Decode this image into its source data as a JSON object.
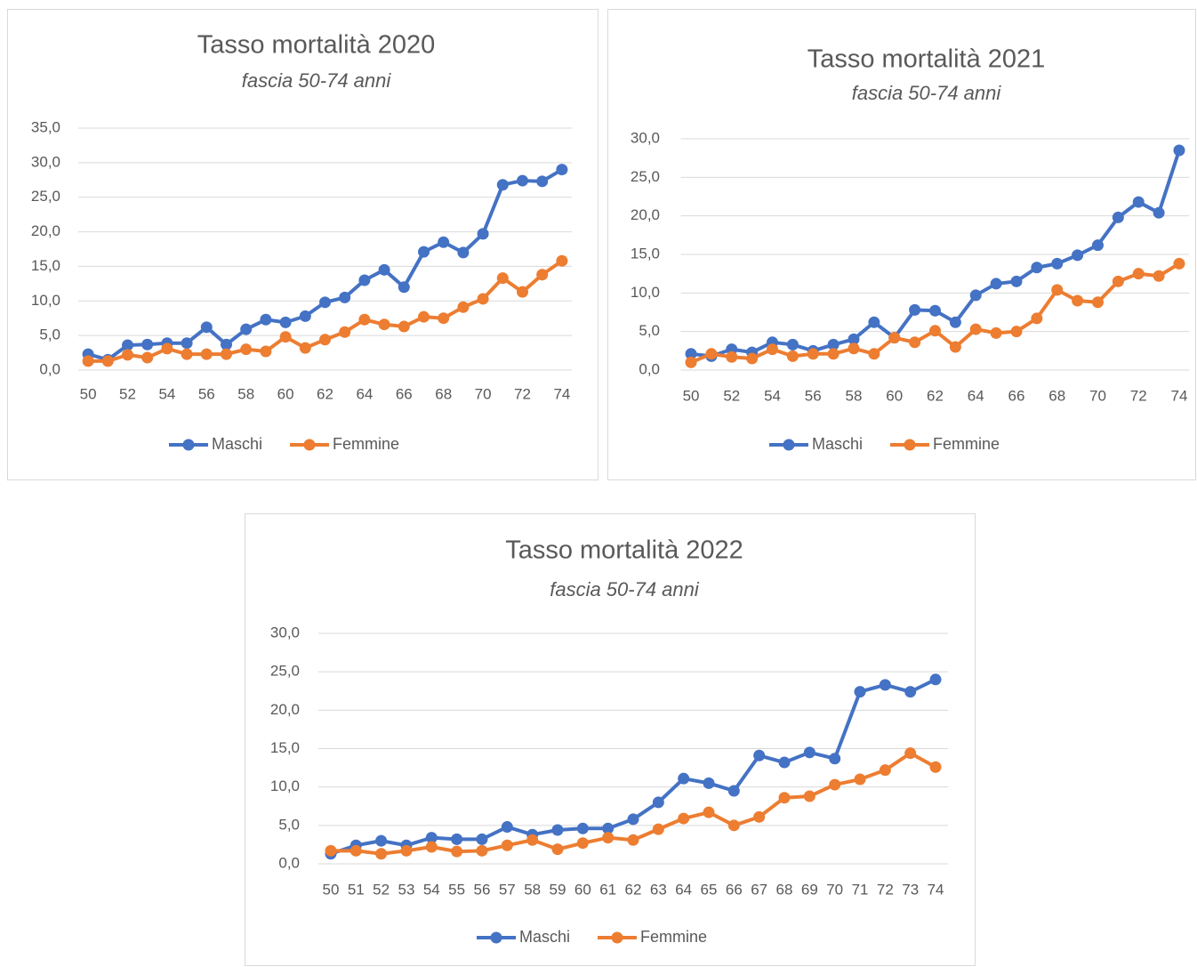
{
  "chart_data": [
    {
      "type": "line",
      "title": "Tasso mortalità 2020",
      "subtitle": "fascia 50-74 anni",
      "categories": [
        "50",
        null,
        "52",
        null,
        "54",
        null,
        "56",
        null,
        "58",
        null,
        "60",
        null,
        "62",
        null,
        "64",
        null,
        "66",
        null,
        "68",
        null,
        "70",
        null,
        "72",
        null,
        "74"
      ],
      "series": [
        {
          "name": "Maschi",
          "color": "#4472c4",
          "values": [
            2.3,
            1.5,
            3.6,
            3.7,
            3.9,
            3.9,
            6.2,
            3.7,
            5.9,
            7.3,
            6.9,
            7.8,
            9.8,
            10.5,
            13.0,
            14.5,
            12.0,
            17.1,
            18.5,
            17.0,
            19.7,
            26.8,
            27.4,
            27.3,
            29.0
          ]
        },
        {
          "name": "Femmine",
          "color": "#ed7d31",
          "values": [
            1.3,
            1.3,
            2.2,
            1.8,
            3.1,
            2.3,
            2.3,
            2.3,
            3.0,
            2.7,
            4.8,
            3.2,
            4.4,
            5.5,
            7.3,
            6.6,
            6.3,
            7.7,
            7.5,
            9.1,
            10.3,
            13.3,
            11.3,
            13.8,
            15.8
          ]
        }
      ],
      "ylim": [
        0,
        35
      ],
      "yticks": [
        {
          "value": 0,
          "label": "0,0"
        },
        {
          "value": 5,
          "label": "5,0"
        },
        {
          "value": 10,
          "label": "10,0"
        },
        {
          "value": 15,
          "label": "15,0"
        },
        {
          "value": 20,
          "label": "20,0"
        },
        {
          "value": 25,
          "label": "25,0"
        },
        {
          "value": 30,
          "label": "30,0"
        },
        {
          "value": 35,
          "label": "35,0"
        }
      ],
      "grid": true,
      "legend": "bottom"
    },
    {
      "type": "line",
      "title": "Tasso mortalità 2021",
      "subtitle": "fascia 50-74 anni",
      "categories": [
        "50",
        null,
        "52",
        null,
        "54",
        null,
        "56",
        null,
        "58",
        null,
        "60",
        null,
        "62",
        null,
        "64",
        null,
        "66",
        null,
        "68",
        null,
        "70",
        null,
        "72",
        null,
        "74"
      ],
      "series": [
        {
          "name": "Maschi",
          "color": "#4472c4",
          "values": [
            2.1,
            1.8,
            2.7,
            2.3,
            3.6,
            3.3,
            2.5,
            3.3,
            4.0,
            6.2,
            4.2,
            7.8,
            7.7,
            6.2,
            9.7,
            11.2,
            11.5,
            13.3,
            13.8,
            14.9,
            16.2,
            19.8,
            21.8,
            20.4,
            28.5
          ]
        },
        {
          "name": "Femmine",
          "color": "#ed7d31",
          "values": [
            1.0,
            2.1,
            1.7,
            1.5,
            2.7,
            1.8,
            2.1,
            2.1,
            2.8,
            2.1,
            4.2,
            3.6,
            5.1,
            3.0,
            5.3,
            4.8,
            5.0,
            6.7,
            10.4,
            9.0,
            8.8,
            11.5,
            12.5,
            12.2,
            13.8
          ]
        }
      ],
      "ylim": [
        0,
        30
      ],
      "yticks": [
        {
          "value": 0,
          "label": "0,0"
        },
        {
          "value": 5,
          "label": "5,0"
        },
        {
          "value": 10,
          "label": "10,0"
        },
        {
          "value": 15,
          "label": "15,0"
        },
        {
          "value": 20,
          "label": "20,0"
        },
        {
          "value": 25,
          "label": "25,0"
        },
        {
          "value": 30,
          "label": "30,0"
        }
      ],
      "grid": true,
      "legend": "bottom"
    },
    {
      "type": "line",
      "title": "Tasso mortalità 2022",
      "subtitle": "fascia 50-74 anni",
      "categories": [
        "50",
        "51",
        "52",
        "53",
        "54",
        "55",
        "56",
        "57",
        "58",
        "59",
        "60",
        "61",
        "62",
        "63",
        "64",
        "65",
        "66",
        "67",
        "68",
        "69",
        "70",
        "71",
        "72",
        "73",
        "74"
      ],
      "series": [
        {
          "name": "Maschi",
          "color": "#4472c4",
          "values": [
            1.3,
            2.4,
            3.0,
            2.4,
            3.4,
            3.2,
            3.2,
            4.8,
            3.8,
            4.4,
            4.6,
            4.6,
            5.8,
            8.0,
            11.1,
            10.5,
            9.5,
            14.1,
            13.2,
            14.5,
            13.7,
            22.4,
            23.3,
            22.4,
            24.0
          ]
        },
        {
          "name": "Femmine",
          "color": "#ed7d31",
          "values": [
            1.7,
            1.7,
            1.3,
            1.7,
            2.2,
            1.6,
            1.7,
            2.4,
            3.1,
            1.9,
            2.7,
            3.4,
            3.1,
            4.5,
            5.9,
            6.7,
            5.0,
            6.1,
            8.6,
            8.8,
            10.3,
            11.0,
            12.2,
            14.4,
            12.6
          ]
        }
      ],
      "ylim": [
        0,
        30
      ],
      "yticks": [
        {
          "value": 0,
          "label": "0,0"
        },
        {
          "value": 5,
          "label": "5,0"
        },
        {
          "value": 10,
          "label": "10,0"
        },
        {
          "value": 15,
          "label": "15,0"
        },
        {
          "value": 20,
          "label": "20,0"
        },
        {
          "value": 25,
          "label": "25,0"
        },
        {
          "value": 30,
          "label": "30,0"
        }
      ],
      "grid": true,
      "legend": "bottom"
    }
  ]
}
